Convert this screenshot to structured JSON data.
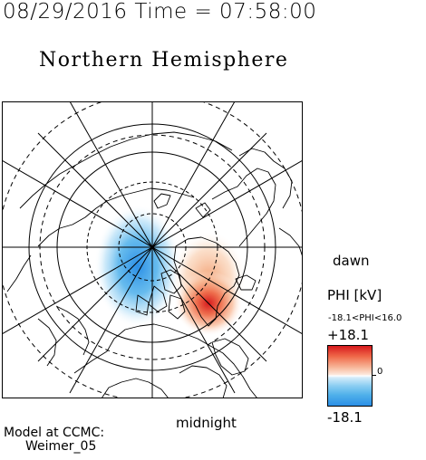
{
  "header": {
    "datetime": "08/29/2016 Time = 07:58:00",
    "hemisphere": "Northern Hemisphere"
  },
  "map": {
    "projection": "polar-stereographic",
    "center": "north-pole",
    "labels": {
      "dawn": "dawn",
      "midnight": "midnight"
    },
    "colors": {
      "positive": "#d7191c",
      "negative": "#2b8fe6",
      "coastline": "#000000",
      "grid": "#000000"
    }
  },
  "colorbar": {
    "title": "PHI [kV]",
    "range_text": "-18.1<PHI<16.0",
    "max_label": "+18.1",
    "min_label": "-18.1",
    "zero_label": "0",
    "max": 18.1,
    "min": -18.1
  },
  "footer": {
    "credit_line1": "Model at CCMC:",
    "credit_line2": "Weimer_05"
  }
}
